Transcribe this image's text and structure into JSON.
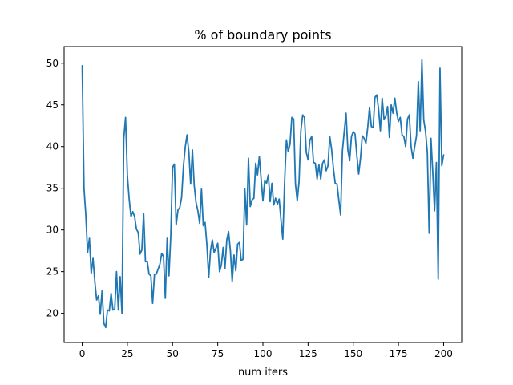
{
  "chart_data": {
    "type": "line",
    "title": "% of boundary points",
    "xlabel": "num iters",
    "ylabel": "",
    "xlim": [
      -10,
      210
    ],
    "ylim": [
      16.5,
      52
    ],
    "xticks": [
      0,
      25,
      50,
      75,
      100,
      125,
      150,
      175,
      200
    ],
    "yticks": [
      20,
      25,
      30,
      35,
      40,
      45,
      50
    ],
    "grid": false,
    "legend": false,
    "series": [
      {
        "color": "#1f77b4",
        "x": [
          0,
          1,
          2,
          3,
          4,
          5,
          6,
          7,
          8,
          9,
          10,
          11,
          12,
          13,
          14,
          15,
          16,
          17,
          18,
          19,
          20,
          21,
          22,
          23,
          24,
          25,
          26,
          27,
          28,
          29,
          30,
          31,
          32,
          33,
          34,
          35,
          36,
          37,
          38,
          39,
          40,
          41,
          42,
          43,
          44,
          45,
          46,
          47,
          48,
          49,
          50,
          51,
          52,
          53,
          54,
          55,
          56,
          57,
          58,
          59,
          60,
          61,
          62,
          63,
          64,
          65,
          66,
          67,
          68,
          69,
          70,
          71,
          72,
          73,
          74,
          75,
          76,
          77,
          78,
          79,
          80,
          81,
          82,
          83,
          84,
          85,
          86,
          87,
          88,
          89,
          90,
          91,
          92,
          93,
          94,
          95,
          96,
          97,
          98,
          99,
          100,
          101,
          102,
          103,
          104,
          105,
          106,
          107,
          108,
          109,
          110,
          111,
          112,
          113,
          114,
          115,
          116,
          117,
          118,
          119,
          120,
          121,
          122,
          123,
          124,
          125,
          126,
          127,
          128,
          129,
          130,
          131,
          132,
          133,
          134,
          135,
          136,
          137,
          138,
          139,
          140,
          141,
          142,
          143,
          144,
          145,
          146,
          147,
          148,
          149,
          150,
          151,
          152,
          153,
          154,
          155,
          156,
          157,
          158,
          159,
          160,
          161,
          162,
          163,
          164,
          165,
          166,
          167,
          168,
          169,
          170,
          171,
          172,
          173,
          174,
          175,
          176,
          177,
          178,
          179,
          180,
          181,
          182,
          183,
          184,
          185,
          186,
          187,
          188,
          189,
          190,
          191,
          192,
          193,
          194,
          195,
          196,
          197,
          198,
          199,
          200
        ],
        "values": [
          49.7,
          35.0,
          31.8,
          27.3,
          29.0,
          24.8,
          26.6,
          23.8,
          21.6,
          22.1,
          19.9,
          22.7,
          18.8,
          18.3,
          20.4,
          20.3,
          22.4,
          20.4,
          20.5,
          25.0,
          20.4,
          24.4,
          20.0,
          41.0,
          43.5,
          36.5,
          33.7,
          31.6,
          32.2,
          31.6,
          30.1,
          29.7,
          27.1,
          27.6,
          32.0,
          26.2,
          26.2,
          24.7,
          24.5,
          21.2,
          24.7,
          24.7,
          25.3,
          25.9,
          27.2,
          26.8,
          21.8,
          29.0,
          24.5,
          29.2,
          37.5,
          37.9,
          30.6,
          32.4,
          32.7,
          33.9,
          37.6,
          39.9,
          41.4,
          39.4,
          35.5,
          39.6,
          35.3,
          33.3,
          32.3,
          30.8,
          34.9,
          30.5,
          30.9,
          28.2,
          24.3,
          27.5,
          28.8,
          27.3,
          27.8,
          28.4,
          25.0,
          25.8,
          27.9,
          25.4,
          28.8,
          29.8,
          27.5,
          23.8,
          27.0,
          25.1,
          28.3,
          28.5,
          26.3,
          26.5,
          34.9,
          30.6,
          38.6,
          32.8,
          33.6,
          33.8,
          38.0,
          36.6,
          38.8,
          36.1,
          33.5,
          35.9,
          35.6,
          36.6,
          33.4,
          35.6,
          33.0,
          33.8,
          33.1,
          33.7,
          31.2,
          28.9,
          35.7,
          40.8,
          39.4,
          40.3,
          43.5,
          43.3,
          35.5,
          33.5,
          35.8,
          41.9,
          43.8,
          43.5,
          39.3,
          38.4,
          40.8,
          41.2,
          38.1,
          38.0,
          36.1,
          37.8,
          36.1,
          38.0,
          38.4,
          37.1,
          37.7,
          41.2,
          39.7,
          37.4,
          35.6,
          35.5,
          33.6,
          31.8,
          39.5,
          41.8,
          44.0,
          39.6,
          38.3,
          41.2,
          41.8,
          41.5,
          38.9,
          36.7,
          38.6,
          41.3,
          41.0,
          40.4,
          42.3,
          44.7,
          42.4,
          42.3,
          45.9,
          46.2,
          44.5,
          41.9,
          45.8,
          43.3,
          43.6,
          44.8,
          41.1,
          45.0,
          44.0,
          45.8,
          44.1,
          43.0,
          43.5,
          41.4,
          41.2,
          40.0,
          43.3,
          43.8,
          40.0,
          38.6,
          40.0,
          41.3,
          47.8,
          41.9,
          50.4,
          43.2,
          41.8,
          39.3,
          29.6,
          41.0,
          36.9,
          32.3,
          38.1,
          24.1,
          49.4,
          37.7,
          39.0
        ]
      }
    ]
  }
}
